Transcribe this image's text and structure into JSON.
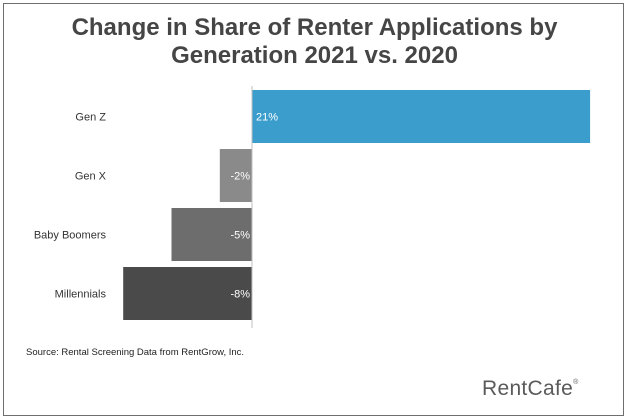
{
  "title_line1": "Change in Share of Renter Applications by",
  "title_line2": "Generation 2021 vs. 2020",
  "source": "Source: Rental Screening Data from RentGrow, Inc.",
  "logo": {
    "text": "RentCafe",
    "mark": "®"
  },
  "colors": {
    "positive": "#3b9dcb",
    "gen_x": "#8a8a8a",
    "baby_boomers": "#6d6d6d",
    "millennials": "#4a4a4a"
  },
  "chart_data": {
    "type": "bar",
    "orientation": "horizontal",
    "categories": [
      "Gen Z",
      "Gen X",
      "Baby Boomers",
      "Millennials"
    ],
    "values": [
      21,
      -2,
      -5,
      -8
    ],
    "value_labels": [
      "21%",
      "-2%",
      "-5%",
      "-8%"
    ],
    "xlim": [
      -8.5,
      21
    ],
    "grid": false
  }
}
